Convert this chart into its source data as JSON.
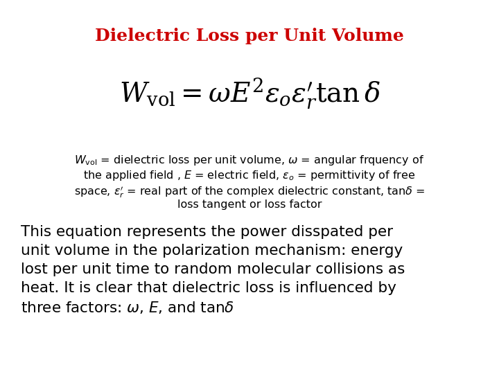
{
  "title": "Dielectric Loss per Unit Volume",
  "title_color": "#cc0000",
  "title_fontsize": 18,
  "bg_color": "#ffffff",
  "formula_fontsize": 28,
  "desc_lines": [
    "$W_{\\mathrm{vol}}$ = dielectric loss per unit volume, $\\omega$ = angular frquency of",
    "the applied field , $E$ = electric field, $\\varepsilon_o$ = permittivity of free",
    "space, $\\varepsilon_r^{\\prime}$ = real part of the complex dielectric constant, tan$\\delta$ =",
    "loss tangent or loss factor"
  ],
  "desc_fontsize": 11.5,
  "paragraph_lines": [
    "This equation represents the power disspated per",
    "unit volume in the polarization mechanism: energy",
    "lost per unit time to random molecular collisions as",
    "heat. It is clear that dielectric loss is influenced by",
    "three factors: $\\omega$, $E$, and tan$\\delta$"
  ],
  "para_fontsize": 15.5
}
